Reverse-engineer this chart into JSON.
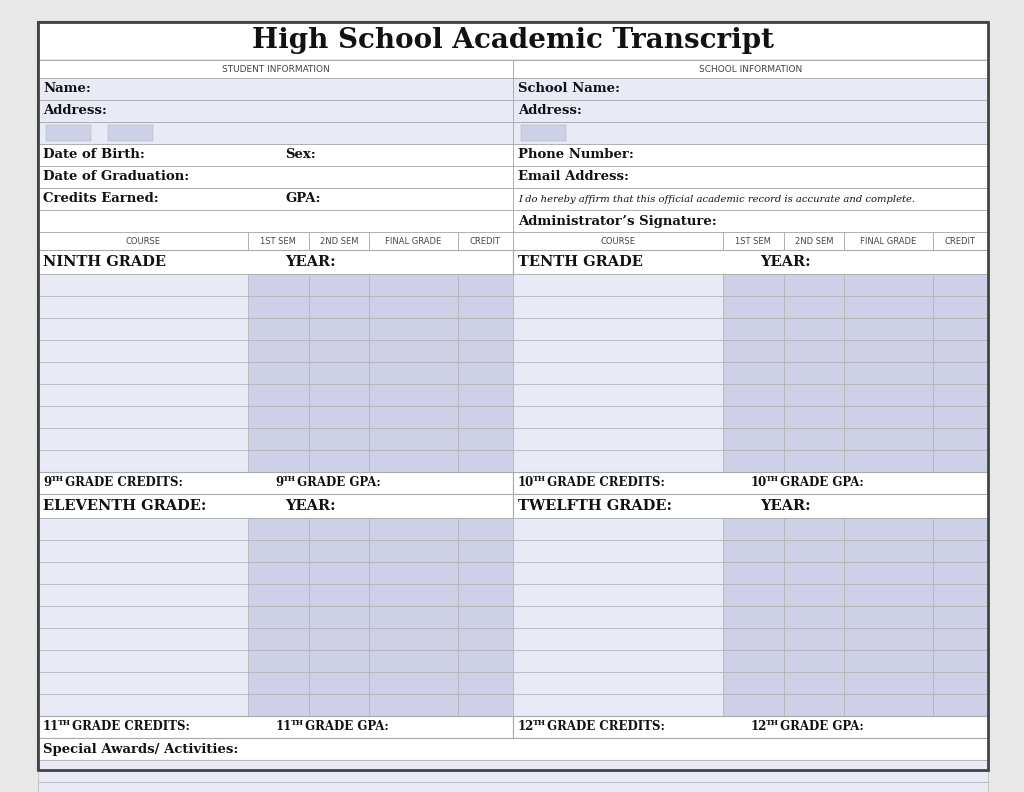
{
  "title": "High School Academic Transcript",
  "bg_color": "#e8e8e8",
  "form_bg": "#ffffff",
  "cell_fill_light": "#e8eaf6",
  "cell_fill_dark": "#ced0e8",
  "border_color": "#aaaaaa",
  "student_info_label": "STUDENT INFORMATION",
  "school_info_label": "SCHOOL INFORMATION",
  "course_col_headers": [
    "COURSE",
    "1ST SEM",
    "2ND SEM",
    "FINAL GRADE",
    "CREDIT"
  ],
  "col_props": [
    38,
    11,
    11,
    16,
    10
  ],
  "special_awards_label": "Special Awards/ Activities:",
  "special_rows": 4,
  "num_grade_rows": 9
}
